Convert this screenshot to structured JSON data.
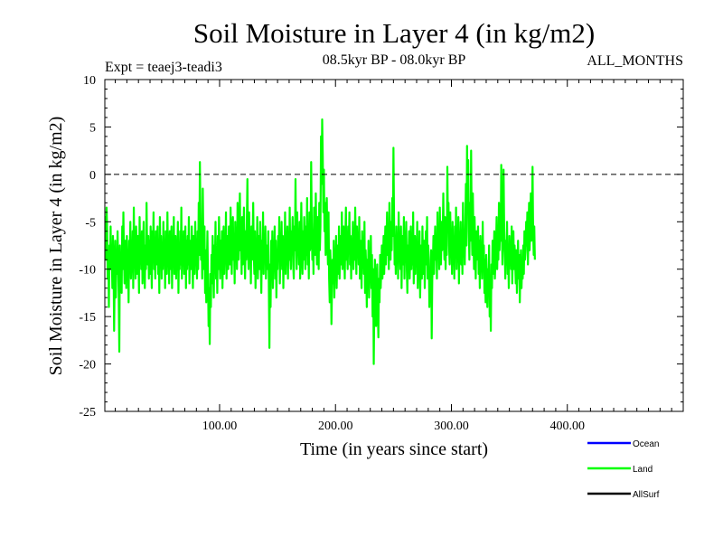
{
  "chart_data": {
    "type": "line",
    "title": "Soil Moisture in Layer 4 (in kg/m2)",
    "subtitle_left": "Expt = teaej3-teadi3",
    "subtitle_center": "08.5kyr BP - 08.0kyr BP",
    "subtitle_right": "ALL_MONTHS",
    "xlabel": "Time (in years since start)",
    "ylabel": "Soil Moisture in Layer 4 (in kg/m2)",
    "xlim": [
      1,
      500
    ],
    "ylim": [
      -25,
      10
    ],
    "xticks": [
      {
        "value": 100,
        "label": "100.00"
      },
      {
        "value": 200,
        "label": "200.00"
      },
      {
        "value": 300,
        "label": "300.00"
      },
      {
        "value": 400,
        "label": "400.00"
      }
    ],
    "yticks": [
      {
        "value": 10,
        "label": "10"
      },
      {
        "value": 5,
        "label": "5"
      },
      {
        "value": 0,
        "label": "0"
      },
      {
        "value": -5,
        "label": "-5"
      },
      {
        "value": -10,
        "label": "-10"
      },
      {
        "value": -15,
        "label": "-15"
      },
      {
        "value": -20,
        "label": "-20"
      },
      {
        "value": -25,
        "label": "-25"
      }
    ],
    "reference_line": {
      "y": 0,
      "style": "dashed",
      "color": "#000000"
    },
    "legend": [
      {
        "label": "Ocean",
        "color": "#0000ff"
      },
      {
        "label": "Land",
        "color": "#00ff00"
      },
      {
        "label": "AllSurf",
        "color": "#000000"
      }
    ],
    "series": [
      {
        "name": "Land",
        "color": "#00ff00",
        "x_start": 1,
        "x_step": 0.5,
        "values": [
          -7.0,
          -4.5,
          -9.0,
          -3.5,
          -6.0,
          -11.0,
          -8.0,
          -14.0,
          -7.5,
          -9.5,
          -5.5,
          -10.0,
          -8.5,
          -12.0,
          -6.5,
          -9.0,
          -16.5,
          -11.0,
          -7.0,
          -13.0,
          -8.0,
          -10.5,
          -6.0,
          -9.5,
          -13.0,
          -18.7,
          -7.5,
          -11.0,
          -9.0,
          -12.5,
          -5.5,
          -10.0,
          -4.0,
          -8.5,
          -11.5,
          -7.0,
          -9.0,
          -12.0,
          -6.5,
          -10.0,
          -8.0,
          -13.5,
          -7.0,
          -9.5,
          -5.0,
          -11.0,
          -8.5,
          -10.0,
          -6.0,
          -12.0,
          -3.5,
          -9.0,
          -7.5,
          -11.0,
          -5.5,
          -8.0,
          -10.5,
          -6.5,
          -9.0,
          -12.5,
          -4.5,
          -8.5,
          -7.0,
          -10.0,
          -6.0,
          -11.5,
          -8.0,
          -5.0,
          -9.5,
          -12.0,
          -7.5,
          -10.0,
          -3.0,
          -8.0,
          -9.5,
          -6.5,
          -11.0,
          -7.0,
          -10.5,
          -5.5,
          -8.5,
          -12.0,
          -6.0,
          -9.0,
          -4.0,
          -10.0,
          -7.5,
          -11.0,
          -6.0,
          -9.5,
          -8.0,
          -5.5,
          -10.5,
          -7.0,
          -12.5,
          -4.5,
          -9.0,
          -6.5,
          -11.0,
          -8.0,
          -10.0,
          -5.0,
          -9.5,
          -7.0,
          -12.0,
          -6.0,
          -8.5,
          -10.5,
          -4.0,
          -9.0,
          -7.5,
          -11.5,
          -6.0,
          -10.0,
          -8.0,
          -5.5,
          -12.0,
          -7.0,
          -9.5,
          -4.5,
          -10.5,
          -8.5,
          -6.5,
          -11.0,
          -7.0,
          -9.0,
          -5.0,
          -12.5,
          -8.0,
          -10.0,
          -6.0,
          -9.5,
          -3.5,
          -11.0,
          -7.5,
          -9.0,
          -6.0,
          -10.5,
          -8.0,
          -5.5,
          -12.0,
          -7.0,
          -10.0,
          -6.5,
          -9.5,
          -4.5,
          -11.5,
          -8.0,
          -7.0,
          -10.0,
          -5.5,
          -9.0,
          -12.0,
          -6.5,
          -8.5,
          -10.5,
          -5.0,
          -9.5,
          -7.5,
          -11.0,
          -6.0,
          -10.0,
          -3.0,
          -8.5,
          1.3,
          -4.0,
          -9.0,
          -6.5,
          -11.0,
          -1.5,
          -7.0,
          -10.0,
          -5.5,
          -12.5,
          -8.0,
          -13.5,
          -9.5,
          -6.0,
          -11.0,
          -16.0,
          -12.0,
          -17.9,
          -10.5,
          -14.0,
          -8.5,
          -11.5,
          -6.5,
          -10.0,
          -13.0,
          -7.5,
          -9.5,
          -5.0,
          -11.0,
          -8.0,
          -12.5,
          -6.5,
          -10.0,
          -4.5,
          -8.5,
          -11.0,
          -7.0,
          -9.5,
          -6.0,
          -12.0,
          -8.0,
          -5.5,
          -10.5,
          -7.5,
          -9.0,
          -4.0,
          -11.0,
          -6.5,
          -8.5,
          -10.0,
          -5.5,
          -7.0,
          -9.5,
          -3.5,
          -8.0,
          -10.5,
          -6.0,
          -4.5,
          -9.0,
          -7.0,
          -11.5,
          -5.0,
          -8.5,
          -6.5,
          -10.0,
          -3.0,
          -7.5,
          -9.0,
          -5.5,
          -2.0,
          -8.0,
          -6.0,
          -10.5,
          -4.5,
          -9.5,
          -7.0,
          -3.5,
          -8.5,
          -11.0,
          -6.0,
          -9.0,
          -5.0,
          -0.5,
          -7.5,
          -10.0,
          -4.0,
          -8.0,
          -6.5,
          -11.5,
          -5.5,
          -9.0,
          -7.0,
          -3.0,
          -8.5,
          -10.5,
          -6.0,
          -12.0,
          -7.5,
          -9.5,
          -4.5,
          -11.0,
          -8.0,
          -6.5,
          -10.0,
          -5.0,
          -9.0,
          -12.5,
          -7.0,
          -8.5,
          -4.0,
          -10.5,
          -6.5,
          -9.0,
          -5.5,
          -11.0,
          -7.5,
          -8.0,
          -10.0,
          -6.0,
          -12.0,
          -18.3,
          -9.5,
          -14.0,
          -7.0,
          -10.5,
          -6.0,
          -12.0,
          -8.0,
          -9.5,
          -5.5,
          -11.0,
          -7.0,
          -13.0,
          -8.5,
          -10.0,
          -6.5,
          -9.0,
          -4.5,
          -11.5,
          -7.5,
          -8.5,
          -5.0,
          -10.0,
          -6.5,
          -12.0,
          -8.0,
          -9.5,
          -4.0,
          -10.5,
          -7.0,
          -8.0,
          -5.5,
          -11.0,
          -6.5,
          -9.0,
          -3.5,
          -8.5,
          -10.0,
          -6.0,
          -7.5,
          -4.5,
          -9.5,
          -11.0,
          -5.5,
          -8.0,
          -0.5,
          -7.0,
          -10.0,
          -4.0,
          -8.5,
          -6.5,
          -9.5,
          -5.0,
          -11.0,
          -7.5,
          -3.0,
          -8.0,
          -10.5,
          -6.0,
          -9.0,
          -4.5,
          -7.0,
          -10.0,
          -5.5,
          -8.5,
          -2.5,
          -9.5,
          -6.5,
          -11.0,
          -4.0,
          -8.0,
          -7.5,
          1.3,
          -5.0,
          -9.0,
          -6.0,
          -10.5,
          -3.5,
          -7.5,
          -8.5,
          -2.0,
          -6.5,
          -9.5,
          -4.5,
          -7.0,
          -10.0,
          -3.0,
          -8.0,
          -5.5,
          4.0,
          -1.0,
          5.8,
          2.0,
          -4.0,
          0.5,
          -6.0,
          -3.0,
          -8.5,
          -5.0,
          -2.5,
          -7.0,
          -9.5,
          -4.0,
          -11.0,
          -13.5,
          -8.0,
          -10.0,
          -15.8,
          -12.0,
          -9.0,
          -11.5,
          -7.0,
          -13.0,
          -8.5,
          -10.0,
          -6.5,
          -12.0,
          -9.0,
          -7.5,
          -10.5,
          -5.5,
          -11.0,
          -8.0,
          -6.5,
          -9.5,
          -4.0,
          -10.0,
          -7.5,
          -5.5,
          -8.5,
          -11.0,
          -6.5,
          -3.5,
          -9.0,
          -7.0,
          -10.0,
          -5.5,
          -8.0,
          -4.0,
          -9.5,
          -6.5,
          -11.0,
          -7.0,
          -8.5,
          -5.0,
          -10.0,
          -6.0,
          -9.0,
          -3.5,
          -7.5,
          -10.5,
          -5.5,
          -8.0,
          -6.5,
          -9.5,
          -4.5,
          -11.0,
          -7.0,
          -8.5,
          -12.0,
          -6.0,
          -9.5,
          -7.5,
          -10.5,
          -5.0,
          -12.5,
          -8.0,
          -10.0,
          -14.0,
          -9.0,
          -11.5,
          -7.0,
          -13.0,
          -9.5,
          -10.5,
          -6.5,
          -12.0,
          -8.5,
          -15.0,
          -10.0,
          -20.0,
          -13.0,
          -9.0,
          -11.5,
          -16.0,
          -12.0,
          -9.5,
          -14.5,
          -17.2,
          -11.0,
          -13.5,
          -8.5,
          -12.0,
          -10.0,
          -7.5,
          -11.0,
          -9.0,
          -6.5,
          -10.5,
          -8.0,
          -5.5,
          -9.5,
          -7.0,
          -4.0,
          -8.5,
          -6.0,
          -10.0,
          -3.0,
          -7.5,
          -9.0,
          -5.0,
          -8.0,
          -2.5,
          -6.5,
          2.8,
          -4.5,
          -9.5,
          -7.0,
          -10.5,
          -5.5,
          -8.5,
          -6.5,
          -11.0,
          -4.0,
          -9.0,
          -7.5,
          -10.0,
          -5.5,
          -12.0,
          -8.0,
          -6.5,
          -9.5,
          -4.5,
          -11.0,
          -7.0,
          -8.5,
          -5.0,
          -10.0,
          -12.5,
          -7.5,
          -9.0,
          -6.0,
          -11.0,
          -8.5,
          -5.5,
          -10.0,
          -7.0,
          -9.5,
          -4.0,
          -11.5,
          -8.0,
          -6.5,
          -10.5,
          -7.5,
          -9.0,
          -5.0,
          -12.0,
          -8.5,
          -10.0,
          -6.0,
          -13.0,
          -9.5,
          -7.5,
          -11.0,
          -5.5,
          -9.0,
          -10.5,
          -7.0,
          -12.0,
          -8.0,
          -6.0,
          -9.5,
          -4.5,
          -11.0,
          -7.5,
          -9.0,
          -14.0,
          -10.0,
          -12.5,
          -8.0,
          -17.3,
          -11.0,
          -9.5,
          -6.5,
          -10.5,
          -8.0,
          -5.5,
          -9.0,
          -7.0,
          -11.0,
          -4.0,
          -8.5,
          -6.0,
          -10.0,
          -3.5,
          -7.5,
          -9.5,
          -5.0,
          -8.0,
          -6.5,
          -2.0,
          -7.0,
          -9.0,
          -4.5,
          -10.0,
          -6.0,
          -8.5,
          0.8,
          -5.5,
          -3.0,
          -7.5,
          -9.5,
          -4.0,
          -8.0,
          -6.5,
          -10.5,
          -5.0,
          -9.0,
          -7.0,
          -11.0,
          -5.5,
          -8.5,
          -3.5,
          -10.0,
          -6.5,
          -9.0,
          -4.5,
          -11.5,
          -7.5,
          -8.0,
          -5.0,
          -9.5,
          -6.0,
          -10.5,
          -3.0,
          -8.5,
          -7.0,
          -9.5,
          -5.5,
          -1.0,
          -7.5,
          3.0,
          -4.0,
          1.5,
          -6.0,
          -9.0,
          -3.0,
          -7.0,
          2.5,
          -5.0,
          -8.5,
          -2.0,
          -6.5,
          -10.0,
          -4.5,
          -7.5,
          -11.0,
          -6.0,
          -9.0,
          -8.0,
          -5.5,
          -10.5,
          -7.0,
          -12.0,
          -6.5,
          -9.5,
          -8.0,
          -11.0,
          -5.0,
          -10.0,
          -7.5,
          -12.5,
          -9.0,
          -13.5,
          -8.5,
          -11.0,
          -14.0,
          -10.0,
          -12.0,
          -7.5,
          -15.0,
          -11.5,
          -16.5,
          -9.5,
          -12.0,
          -7.0,
          -10.5,
          -8.5,
          -6.0,
          -11.0,
          -9.0,
          -7.5,
          -4.5,
          -10.0,
          -6.5,
          -9.0,
          -3.0,
          -8.0,
          -5.5,
          -7.0,
          1.0,
          -4.5,
          -9.5,
          -6.5,
          0.5,
          -5.5,
          -8.0,
          -11.0,
          -7.0,
          -9.5,
          -5.0,
          -10.5,
          -8.0,
          -12.0,
          -6.5,
          -9.0,
          -7.5,
          -10.0,
          -5.5,
          -11.5,
          -8.5,
          -6.0,
          -10.0,
          -7.5,
          -9.0,
          -11.5,
          -8.0,
          -12.5,
          -9.5,
          -7.0,
          -11.0,
          -8.5,
          -13.5,
          -10.0,
          -8.0,
          -12.0,
          -9.5,
          -11.0,
          -7.5,
          -10.5,
          -6.0,
          -9.0,
          -8.0,
          -5.0,
          -7.5,
          -4.0,
          -9.5,
          -6.5,
          -3.0,
          -8.0,
          -5.5,
          -2.0,
          -7.0,
          -4.5,
          0.8,
          -6.0,
          -8.5,
          -5.5,
          -9.0
        ]
      }
    ]
  }
}
